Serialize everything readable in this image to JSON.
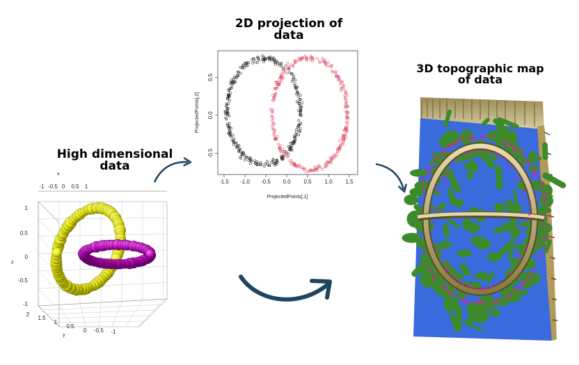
{
  "titles": {
    "projection": [
      "2D projection of",
      "data"
    ],
    "high_dim": [
      "High dimensional",
      "data"
    ],
    "topo": [
      "3D topographic map",
      "of data"
    ]
  },
  "plot2d": {
    "xlabel": "ProjectedPoints[,1]",
    "ylabel": "ProjectedPoints[,2]",
    "xticks": [
      "-1.5",
      "-1.0",
      "-0.5",
      "0.0",
      "0.5",
      "1.0",
      "1.5"
    ],
    "yticks": [
      "0.5",
      "0.0",
      "-0.5"
    ],
    "series": [
      {
        "color": "#222222"
      },
      {
        "color": "#e0506a"
      }
    ]
  },
  "plot3d": {
    "x_axis_label": "x",
    "y_axis_label": "y",
    "z_axis_label": "z",
    "x_ticks": [
      "-1",
      "-0.5",
      "0",
      "0.5",
      "1"
    ],
    "z_ticks": [
      "1",
      "0.5",
      "0",
      "-0.5",
      "-1"
    ],
    "y_ticks": [
      "2",
      "1.5",
      "1",
      "0.5",
      "0",
      "-0.5",
      "-1"
    ],
    "colors": {
      "ring1": "#e6e619",
      "ring2": "#c510c5"
    }
  },
  "colors": {
    "arrow": "#1f4560",
    "water": "#3a6bdc",
    "land": "#3d8a2a",
    "ridge": "#b39a5a",
    "points": "#d21fb5"
  },
  "icons": [
    "arrow-icon"
  ]
}
